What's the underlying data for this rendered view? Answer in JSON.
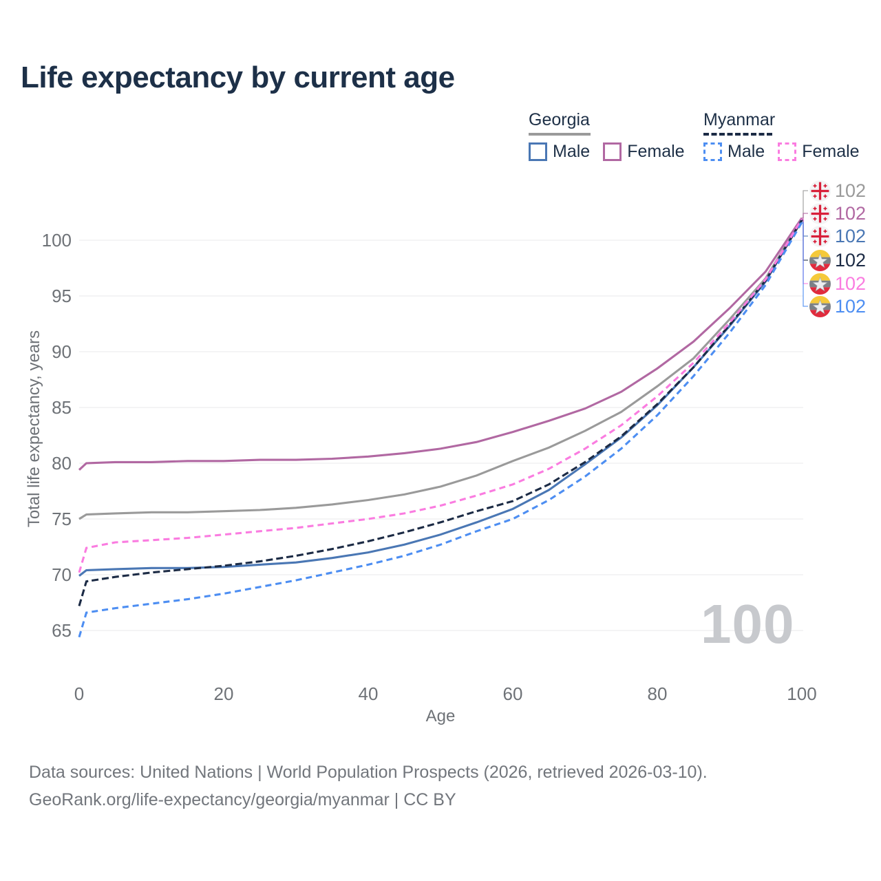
{
  "title": "Life expectancy by current age",
  "watermark": "100",
  "legend": {
    "groups": [
      {
        "label": "Georgia",
        "line_style": "solid",
        "underline_color": "#9a9a9a",
        "items": [
          {
            "label": "Male",
            "color": "#4a77b4"
          },
          {
            "label": "Female",
            "color": "#b168a2"
          }
        ]
      },
      {
        "label": "Myanmar",
        "line_style": "dashed",
        "underline_color": "#1c2b45",
        "items": [
          {
            "label": "Male",
            "color": "#4d8ef2"
          },
          {
            "label": "Female",
            "color": "#fa7ce0"
          }
        ]
      }
    ]
  },
  "y_axis": {
    "title": "Total life expectancy, years",
    "ticks": [
      65,
      70,
      75,
      80,
      85,
      90,
      95,
      100
    ]
  },
  "x_axis": {
    "title": "Age",
    "ticks": [
      0,
      20,
      40,
      60,
      80,
      100
    ]
  },
  "footer": {
    "line1": "Data sources: United Nations | World Population Prospects (2026, retrieved 2026-03-10).",
    "line2": "GeoRank.org/life-expectancy/georgia/myanmar | CC BY"
  },
  "chart_data": {
    "type": "line",
    "title": "Life expectancy by current age",
    "xlabel": "Age",
    "ylabel": "Total life expectancy, years",
    "xlim": [
      0,
      100
    ],
    "ylim": [
      63.5,
      103.5
    ],
    "grid": "horizontal",
    "legend_position": "top-right",
    "x": [
      0,
      1,
      5,
      10,
      15,
      20,
      25,
      30,
      35,
      40,
      45,
      50,
      55,
      60,
      65,
      70,
      75,
      80,
      85,
      90,
      95,
      100
    ],
    "series": [
      {
        "name": "Georgia",
        "country": "Georgia",
        "sex": "both",
        "style": "solid",
        "color": "#9a9a9a",
        "end_label": "102",
        "values": [
          75.0,
          75.4,
          75.5,
          75.6,
          75.6,
          75.7,
          75.8,
          76.0,
          76.3,
          76.7,
          77.2,
          77.9,
          78.9,
          80.2,
          81.4,
          82.9,
          84.6,
          86.9,
          89.4,
          92.9,
          96.6,
          101.9
        ]
      },
      {
        "name": "Georgia Female",
        "country": "Georgia",
        "sex": "female",
        "style": "solid",
        "color": "#b168a2",
        "end_label": "102",
        "values": [
          79.4,
          80.0,
          80.1,
          80.1,
          80.2,
          80.2,
          80.3,
          80.3,
          80.4,
          80.6,
          80.9,
          81.3,
          81.9,
          82.8,
          83.8,
          84.9,
          86.4,
          88.5,
          90.9,
          93.9,
          97.2,
          102.0
        ]
      },
      {
        "name": "Georgia Male",
        "country": "Georgia",
        "sex": "male",
        "style": "solid",
        "color": "#4a77b4",
        "end_label": "102",
        "values": [
          69.9,
          70.4,
          70.5,
          70.6,
          70.6,
          70.7,
          70.9,
          71.1,
          71.5,
          72.0,
          72.7,
          73.6,
          74.7,
          75.9,
          77.6,
          79.9,
          82.3,
          85.2,
          88.6,
          92.3,
          96.3,
          101.8
        ]
      },
      {
        "name": "Myanmar",
        "country": "Myanmar",
        "sex": "both",
        "style": "dashed",
        "color": "#1c2b45",
        "end_label": "102",
        "values": [
          67.2,
          69.4,
          69.8,
          70.2,
          70.5,
          70.8,
          71.2,
          71.7,
          72.3,
          73.0,
          73.8,
          74.7,
          75.7,
          76.6,
          78.1,
          80.1,
          82.4,
          85.3,
          88.6,
          92.4,
          96.4,
          101.8
        ]
      },
      {
        "name": "Myanmar Female",
        "country": "Myanmar",
        "sex": "female",
        "style": "dashed",
        "color": "#fa7ce0",
        "end_label": "102",
        "values": [
          70.2,
          72.4,
          72.9,
          73.1,
          73.3,
          73.6,
          73.9,
          74.2,
          74.6,
          75.0,
          75.5,
          76.2,
          77.1,
          78.1,
          79.5,
          81.3,
          83.4,
          86.0,
          89.0,
          92.6,
          96.5,
          101.9
        ]
      },
      {
        "name": "Myanmar Male",
        "country": "Myanmar",
        "sex": "male",
        "style": "dashed",
        "color": "#4d8ef2",
        "end_label": "102",
        "values": [
          64.4,
          66.6,
          67.0,
          67.4,
          67.8,
          68.3,
          68.9,
          69.5,
          70.2,
          70.9,
          71.7,
          72.7,
          73.9,
          75.0,
          76.7,
          78.8,
          81.3,
          84.3,
          87.8,
          91.7,
          96.0,
          101.6
        ]
      }
    ]
  }
}
